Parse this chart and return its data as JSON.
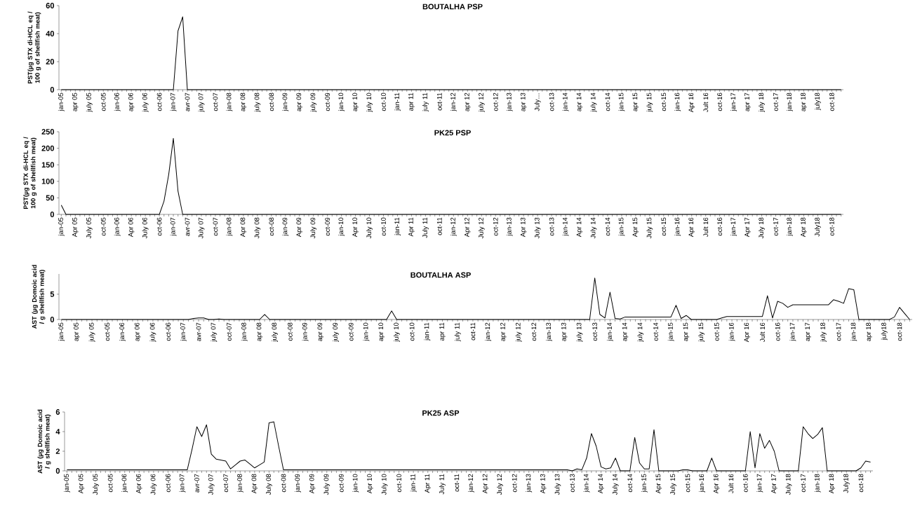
{
  "chart_data": [
    {
      "type": "line",
      "title": "BOUTALHA PSP",
      "ylabel": "PST(µg STX di-HCL eq / 100 g of shellfish meat)",
      "categories": [
        "jan-05",
        null,
        null,
        "apr 05",
        null,
        null,
        "july 05",
        null,
        null,
        "oct-05",
        null,
        null,
        "jan-06",
        null,
        null,
        "apr 06",
        null,
        null,
        "july 06",
        null,
        null,
        "oct-06",
        null,
        null,
        "jan-07",
        null,
        null,
        "avr-07",
        null,
        null,
        "july 07",
        null,
        null,
        "oct-07",
        null,
        null,
        "jan-08",
        null,
        null,
        "apr 08",
        null,
        null,
        "july 08",
        null,
        null,
        "oct-08",
        null,
        null,
        "jan-09",
        null,
        null,
        "apr 09",
        null,
        null,
        "july 09",
        null,
        null,
        "oct-09",
        null,
        null,
        "jan-10",
        null,
        null,
        "apr 10",
        null,
        null,
        "july 10",
        null,
        null,
        "oct-10",
        null,
        null,
        "jan-11",
        null,
        null,
        "apr 11",
        null,
        null,
        "july 11",
        null,
        null,
        "oct-11",
        null,
        null,
        "jan-12",
        null,
        null,
        "apr 12",
        null,
        null,
        "july 12",
        null,
        null,
        "oct-12",
        null,
        null,
        "jan-13",
        null,
        null,
        "apr 13",
        null,
        null,
        "July…",
        null,
        null,
        "oct-13",
        null,
        null,
        "jan-14",
        null,
        null,
        "apr 14",
        null,
        null,
        "july 14",
        null,
        null,
        "oct-14",
        null,
        null,
        "jan-15",
        null,
        null,
        "apr 15",
        null,
        null,
        "july 15",
        null,
        null,
        "oct-15",
        null,
        null,
        "jan-16",
        null,
        null,
        "Apr 16",
        null,
        null,
        "Jult 16",
        null,
        null,
        "oct-16",
        null,
        null,
        "jan-17",
        null,
        null,
        "apr 17",
        null,
        null,
        "july 18",
        null,
        null,
        "oct-17",
        null,
        null,
        "jan-18",
        null,
        null,
        "apr 18",
        null,
        null,
        "july18",
        null,
        null,
        "oct-18",
        null,
        null
      ],
      "series": [
        {
          "color": "#000000",
          "values": [
            0,
            0,
            0,
            0,
            0,
            0,
            0,
            0,
            0,
            0,
            0,
            0,
            0,
            0,
            0,
            0,
            0,
            0,
            0,
            0,
            0,
            0,
            0,
            0,
            0,
            42,
            52,
            0,
            0,
            0,
            0,
            0,
            0,
            0,
            0,
            0,
            0,
            0,
            0,
            0,
            0,
            0,
            0,
            0,
            0,
            0,
            0,
            0,
            0,
            0,
            0,
            0,
            0,
            0,
            0,
            0,
            0,
            0,
            0,
            0,
            0,
            0,
            0,
            0,
            0,
            0,
            0,
            0,
            0,
            0,
            0,
            0,
            0,
            0,
            0,
            0,
            0,
            0,
            0,
            0,
            0,
            0,
            0,
            0,
            0,
            0,
            0,
            0,
            0,
            0,
            0,
            0,
            0,
            0,
            0,
            0,
            0,
            0,
            0,
            0,
            0,
            0,
            0,
            0,
            0,
            0,
            0,
            0,
            0,
            0,
            0,
            0,
            0,
            0,
            0,
            0,
            0,
            0,
            0,
            0,
            0,
            0,
            0,
            0,
            0,
            0,
            0,
            0,
            0,
            0,
            0,
            0,
            0,
            0,
            0,
            0,
            0,
            0,
            0,
            0,
            0,
            0,
            0,
            0,
            0,
            0,
            0,
            0,
            0,
            0,
            0,
            0,
            0,
            0,
            0,
            0,
            0,
            0,
            0,
            0,
            0,
            0,
            0,
            0,
            0,
            0,
            0,
            0
          ]
        }
      ],
      "ylim": [
        0,
        60
      ],
      "yticks": [
        0,
        20,
        40,
        60
      ]
    },
    {
      "type": "line",
      "title": "PK25 PSP",
      "ylabel": "PST(µg STX di-HCL eq / 100 g of shellfish meat)",
      "categories": [
        "jan-05",
        null,
        null,
        "Apr 05",
        null,
        null,
        "July 05",
        null,
        null,
        "oct-05",
        null,
        null,
        "jan-06",
        null,
        null,
        "Apr 06",
        null,
        null,
        "July 06",
        null,
        null,
        "oct-06",
        null,
        null,
        "jan-07",
        null,
        null,
        "avr-07",
        null,
        null,
        "July 07",
        null,
        null,
        "oct-07",
        null,
        null,
        "jan-08",
        null,
        null,
        "Apr 08",
        null,
        null,
        "July 08",
        null,
        null,
        "oct-08",
        null,
        null,
        "jan-09",
        null,
        null,
        "Apr 09",
        null,
        null,
        "July 09",
        null,
        null,
        "oct-09",
        null,
        null,
        "jan-10",
        null,
        null,
        "Apr 10",
        null,
        null,
        "July 10",
        null,
        null,
        "oct-10",
        null,
        null,
        "jan-11",
        null,
        null,
        "Apr 11",
        null,
        null,
        "July 11",
        null,
        null,
        "oct-11",
        null,
        null,
        "jan-12",
        null,
        null,
        "Apr 12",
        null,
        null,
        "July 12",
        null,
        null,
        "oct-12",
        null,
        null,
        "jan-13",
        null,
        null,
        "Apr 13",
        null,
        null,
        "July 13",
        null,
        null,
        "oct-13",
        null,
        null,
        "jan-14",
        null,
        null,
        "Apr 14",
        null,
        null,
        "July 14",
        null,
        null,
        "oct-14",
        null,
        null,
        "jan-15",
        null,
        null,
        "Apr 15",
        null,
        null,
        "July 15",
        null,
        null,
        "oct-15",
        null,
        null,
        "jan-16",
        null,
        null,
        "Apr 16",
        null,
        null,
        "Jult 16",
        null,
        null,
        "oct-16",
        null,
        null,
        "jan-17",
        null,
        null,
        "Apr 17",
        null,
        null,
        "July 18",
        null,
        null,
        "oct-17",
        null,
        null,
        "jan-18",
        null,
        null,
        "Apr 18",
        null,
        null,
        "July18",
        null,
        null,
        "oct-18",
        null,
        null
      ],
      "series": [
        {
          "color": "#000000",
          "values": [
            28,
            0,
            0,
            0,
            0,
            0,
            0,
            0,
            0,
            0,
            0,
            0,
            0,
            0,
            0,
            0,
            0,
            0,
            0,
            0,
            0,
            0,
            40,
            120,
            230,
            70,
            0,
            0,
            0,
            0,
            0,
            0,
            0,
            0,
            0,
            0,
            0,
            0,
            0,
            0,
            0,
            0,
            0,
            0,
            0,
            0,
            0,
            0,
            0,
            0,
            0,
            0,
            0,
            0,
            0,
            0,
            0,
            0,
            0,
            0,
            0,
            0,
            0,
            0,
            0,
            0,
            0,
            0,
            0,
            0,
            0,
            0,
            0,
            0,
            0,
            0,
            0,
            0,
            0,
            0,
            0,
            0,
            0,
            0,
            0,
            0,
            0,
            0,
            0,
            0,
            0,
            0,
            0,
            0,
            0,
            0,
            0,
            0,
            0,
            0,
            0,
            0,
            0,
            0,
            0,
            0,
            0,
            0,
            0,
            0,
            0,
            0,
            0,
            0,
            0,
            0,
            0,
            0,
            0,
            0,
            0,
            0,
            0,
            0,
            0,
            0,
            0,
            0,
            0,
            0,
            0,
            0,
            0,
            0,
            0,
            0,
            0,
            0,
            0,
            0,
            0,
            0,
            0,
            0,
            0,
            0,
            0,
            0,
            0,
            0,
            0,
            0,
            0,
            0,
            0,
            0,
            0,
            0,
            0,
            0,
            0,
            0,
            0,
            0,
            0,
            0,
            0,
            0
          ]
        }
      ],
      "ylim": [
        0,
        250
      ],
      "yticks": [
        0,
        50,
        100,
        150,
        200,
        250
      ]
    },
    {
      "type": "line",
      "title": "BOUTALHA ASP",
      "ylabel": "AST (µg Domoic acid / g shellfish meat)",
      "categories": [
        "jan-05",
        null,
        null,
        "apr 05",
        null,
        null,
        "july 05",
        null,
        null,
        "oct-05",
        null,
        null,
        "jan-06",
        null,
        null,
        "apr 06",
        null,
        null,
        "july 06",
        null,
        null,
        "oct-06",
        null,
        null,
        "jan-07",
        null,
        null,
        "avr-07",
        null,
        null,
        "july 07",
        null,
        null,
        "oct-07",
        null,
        null,
        "jan-08",
        null,
        null,
        "apr 08",
        null,
        null,
        "july 08",
        null,
        null,
        "oct-08",
        null,
        null,
        "jan-09",
        null,
        null,
        "apr 09",
        null,
        null,
        "july 09",
        null,
        null,
        "oct-09",
        null,
        null,
        "jan-10",
        null,
        null,
        "apr 10",
        null,
        null,
        "july 10",
        null,
        null,
        "oct-10",
        null,
        null,
        "jan-11",
        null,
        null,
        "apr 11",
        null,
        null,
        "july 11",
        null,
        null,
        "oct-11",
        null,
        null,
        "jan-12",
        null,
        null,
        "apr 12",
        null,
        null,
        "july 12",
        null,
        null,
        "oct-12",
        null,
        null,
        "jan-13",
        null,
        null,
        "apr 13",
        null,
        null,
        "july 13",
        null,
        null,
        "oct-13",
        null,
        null,
        "jan-14",
        null,
        null,
        "apr 14",
        null,
        null,
        "july 14",
        null,
        null,
        "oct-14",
        null,
        null,
        "jan-15",
        null,
        null,
        "apr 15",
        null,
        null,
        "july 15",
        null,
        null,
        "oct-15",
        null,
        null,
        "jan-16",
        null,
        null,
        "Apr 16",
        null,
        null,
        "Jult 16",
        null,
        null,
        "oct-16",
        null,
        null,
        "jan-17",
        null,
        null,
        "apr 17",
        null,
        null,
        "july 18",
        null,
        null,
        "oct-17",
        null,
        null,
        "jan-18",
        null,
        null,
        "apr 18",
        null,
        null,
        "july18",
        null,
        null,
        "oct-18",
        null,
        null
      ],
      "series": [
        {
          "color": "#000000",
          "values": [
            0,
            0,
            0,
            0,
            0,
            0,
            0,
            0,
            0,
            0,
            0,
            0,
            0,
            0,
            0,
            0,
            0,
            0,
            0,
            0,
            0,
            0,
            0,
            0,
            0,
            0,
            0.2,
            0.3,
            0.3,
            0,
            0,
            0.1,
            0,
            0,
            0,
            0,
            0,
            0,
            0,
            0,
            1.0,
            0,
            0,
            0,
            0,
            0,
            0,
            0,
            0,
            0,
            0,
            0,
            0,
            0,
            0,
            0,
            0,
            0,
            0,
            0,
            0,
            0,
            0,
            0,
            0,
            1.7,
            0,
            0,
            0,
            0,
            0,
            0,
            0,
            0,
            0,
            0,
            0,
            0,
            0,
            0,
            0,
            0,
            0,
            0,
            0,
            0,
            0,
            0,
            0,
            0,
            0,
            0,
            0,
            0,
            0,
            0,
            0,
            0,
            0,
            0,
            0,
            0,
            0,
            0,
            0,
            8.2,
            1.0,
            0.3,
            5.4,
            0.2,
            0.1,
            0.5,
            0.5,
            0.5,
            0.5,
            0.5,
            0.5,
            0.5,
            0.5,
            0.5,
            0.5,
            2.8,
            0.2,
            0.8,
            0,
            0,
            0,
            0,
            0,
            0,
            0.3,
            0.6,
            0.6,
            0.6,
            0.6,
            0.6,
            0.6,
            0.6,
            0.6,
            4.7,
            0.3,
            3.6,
            3.2,
            2.4,
            2.9,
            2.9,
            2.9,
            2.9,
            2.9,
            2.9,
            2.9,
            2.9,
            3.9,
            3.6,
            3.2,
            6.1,
            5.9,
            0,
            0,
            0,
            0,
            0,
            0,
            0,
            0.5,
            2.4,
            1.2,
            0
          ]
        }
      ],
      "ylim": [
        0,
        9
      ],
      "yticks": [
        0,
        5
      ]
    },
    {
      "type": "line",
      "title": "PK25 ASP",
      "ylabel": "AST (µg Domoic acid / g shellfish meat)",
      "categories": [
        "jan-05",
        null,
        null,
        "Apr 05",
        null,
        null,
        "July 05",
        null,
        null,
        "oct-05",
        null,
        null,
        "jan-06",
        null,
        null,
        "Apr 06",
        null,
        null,
        "July 06",
        null,
        null,
        "oct-06",
        null,
        null,
        "jan-07",
        null,
        null,
        "avr-07",
        null,
        null,
        "July 07",
        null,
        null,
        "oct-07",
        null,
        null,
        "jan-08",
        null,
        null,
        "Apr 08",
        null,
        null,
        "July 08",
        null,
        null,
        "oct-08",
        null,
        null,
        "jan-09",
        null,
        null,
        "Apr 09",
        null,
        null,
        "July 09",
        null,
        null,
        "oct-09",
        null,
        null,
        "jan-10",
        null,
        null,
        "Apr 10",
        null,
        null,
        "July 10",
        null,
        null,
        "oct-10",
        null,
        null,
        "jan-11",
        null,
        null,
        "Apr 11",
        null,
        null,
        "July 11",
        null,
        null,
        "oct-11",
        null,
        null,
        "jan-12",
        null,
        null,
        "Apr 12",
        null,
        null,
        "July 12",
        null,
        null,
        "oct-12",
        null,
        null,
        "jan-13",
        null,
        null,
        "Apr 13",
        null,
        null,
        "July 13",
        null,
        null,
        "oct-13",
        null,
        null,
        "jan-14",
        null,
        null,
        "Apr 14",
        null,
        null,
        "July 14",
        null,
        null,
        "oct-14",
        null,
        null,
        "jan-15",
        null,
        null,
        "Apr 15",
        null,
        null,
        "July 15",
        null,
        null,
        "oct-15",
        null,
        null,
        "jan-16",
        null,
        null,
        "Apr 16",
        null,
        null,
        "Jult 16",
        null,
        null,
        "oct-16",
        null,
        null,
        "jan-17",
        null,
        null,
        "Apr 17",
        null,
        null,
        "July 18",
        null,
        null,
        "oct-17",
        null,
        null,
        "jan-18",
        null,
        null,
        "Apr 18",
        null,
        null,
        "July18",
        null,
        null,
        "oct-18",
        null,
        null
      ],
      "series": [
        {
          "color": "#000000",
          "values": [
            0.1,
            0.1,
            0.1,
            0.1,
            0.1,
            0.1,
            0.1,
            0.1,
            0.1,
            0.1,
            0.1,
            0.1,
            0.1,
            0.1,
            0.1,
            0.1,
            0.1,
            0.1,
            0.1,
            0.1,
            0.1,
            0.1,
            0.1,
            0.1,
            0.1,
            0.1,
            2.2,
            4.5,
            3.5,
            4.7,
            1.7,
            1.2,
            1.1,
            1.0,
            0.2,
            0.6,
            1.0,
            1.1,
            0.7,
            0.3,
            0.6,
            0.9,
            4.9,
            5.0,
            2.5,
            0.1,
            0.1,
            0.1,
            0.1,
            0.1,
            0.1,
            0.1,
            0.1,
            0.1,
            0.1,
            0.1,
            0.1,
            0.1,
            0.1,
            0.1,
            0.1,
            0.1,
            0.1,
            0.1,
            0.1,
            0.1,
            0.1,
            0.1,
            0.1,
            0.1,
            0.1,
            0.1,
            0.1,
            0.1,
            0.1,
            0.1,
            0.1,
            0.1,
            0.1,
            0.1,
            0.1,
            0.1,
            0.1,
            0.1,
            0.1,
            0.1,
            0.1,
            0.1,
            0.1,
            0.1,
            0.1,
            0.1,
            0.1,
            0.1,
            0.1,
            0.1,
            0.1,
            0.1,
            0.1,
            0.1,
            0.1,
            0.1,
            0.1,
            0.1,
            0.1,
            0,
            0.2,
            0.1,
            1.3,
            3.8,
            2.5,
            0.4,
            0.2,
            0.3,
            1.3,
            0,
            0,
            0,
            3.4,
            0.8,
            0.2,
            0.2,
            4.2,
            0,
            0,
            0,
            0,
            0,
            0.1,
            0.1,
            0,
            0,
            0,
            0,
            1.3,
            0,
            0,
            0,
            0,
            0,
            0,
            0,
            4.0,
            0.3,
            3.8,
            2.3,
            3.1,
            2.0,
            0,
            0,
            0,
            0,
            0,
            4.5,
            3.8,
            3.3,
            3.7,
            4.4,
            0,
            0,
            0,
            0,
            0,
            0,
            0,
            0.3,
            1.0,
            0.9
          ]
        }
      ],
      "ylim": [
        0,
        6
      ],
      "yticks": [
        0,
        2,
        4,
        6
      ]
    }
  ]
}
